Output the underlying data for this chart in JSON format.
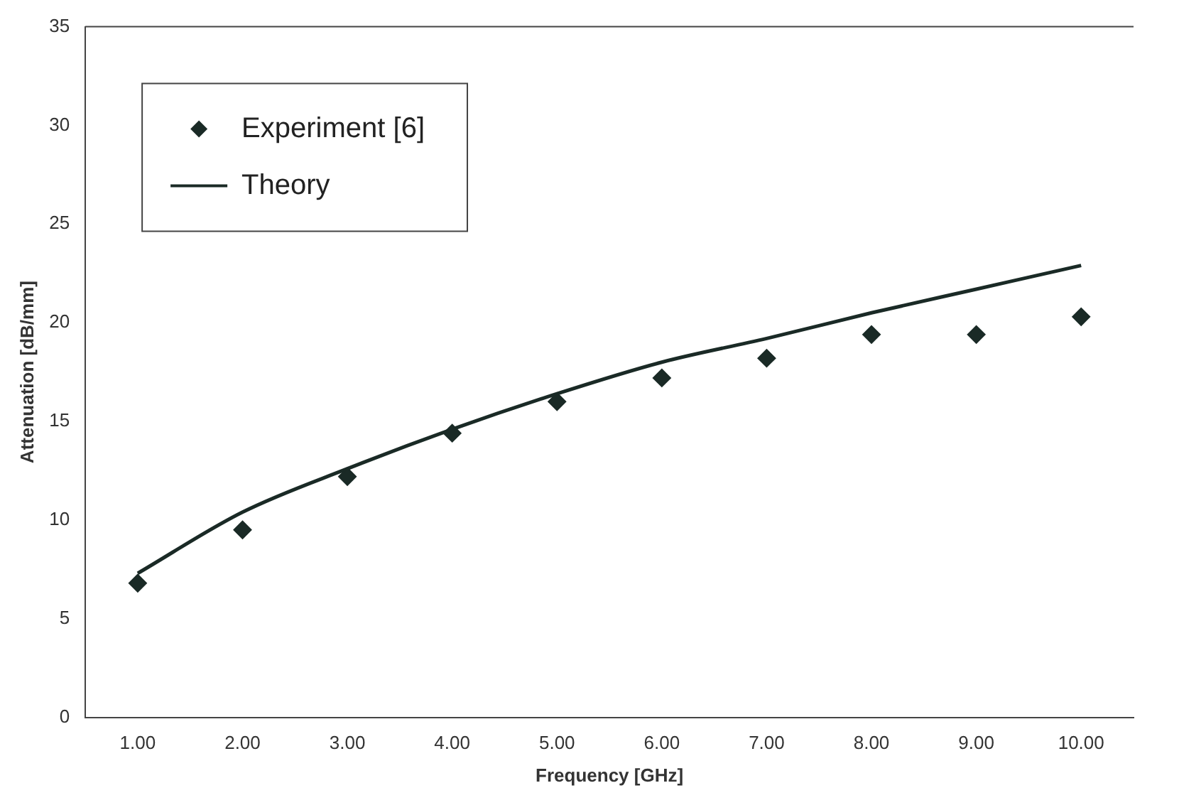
{
  "chart_data": {
    "type": "line",
    "xlabel": "Frequency [GHz]",
    "ylabel": "Attenuation [dB/mm]",
    "categories": [
      "1.00",
      "2.00",
      "3.00",
      "4.00",
      "5.00",
      "6.00",
      "7.00",
      "8.00",
      "9.00",
      "10.00"
    ],
    "series": [
      {
        "name": "Experiment [6]",
        "type": "scatter",
        "marker": "diamond",
        "color": "#1a2a26",
        "values": [
          6.8,
          9.5,
          12.2,
          14.4,
          16.0,
          17.2,
          18.2,
          19.4,
          19.4,
          20.3
        ]
      },
      {
        "name": "Theory",
        "type": "line",
        "marker": "none",
        "line_style": "solid",
        "color": "#1a2a26",
        "values": [
          7.3,
          10.4,
          12.6,
          14.6,
          16.4,
          18.0,
          19.2,
          20.5,
          21.7,
          22.9
        ]
      }
    ],
    "ylim": [
      0,
      35
    ],
    "yticks": [
      0,
      5,
      10,
      15,
      20,
      25,
      30,
      35
    ],
    "grid": false,
    "legend": "top left"
  }
}
